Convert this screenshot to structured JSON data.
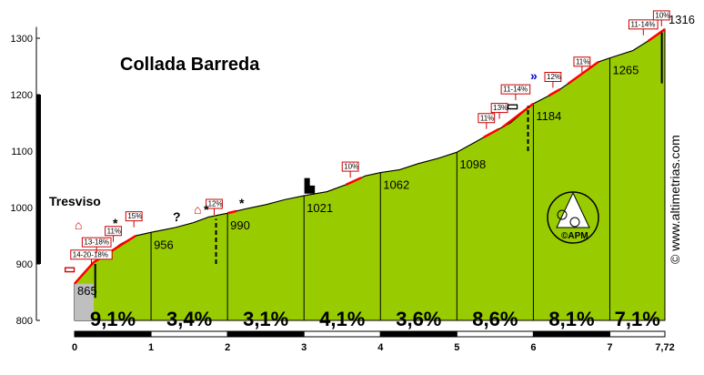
{
  "chart_data": {
    "type": "area",
    "title": "Collada Barreda",
    "start_label": "Tresviso",
    "watermark": "© www.altimetrias.com",
    "logo_text": "©APM",
    "xlim": [
      0,
      7.72
    ],
    "ylim": [
      800,
      1320
    ],
    "y_ticks": [
      800,
      900,
      1000,
      1100,
      1200,
      1300
    ],
    "x_ticks": [
      "0",
      "1",
      "2",
      "3",
      "4",
      "5",
      "6",
      "7",
      "7,72"
    ],
    "colors": {
      "fill": "#99cc00",
      "start_fill": "#bfbfbf",
      "steep": "#ff0000",
      "outline": "#000000"
    },
    "profile": [
      {
        "x": 0,
        "y": 865
      },
      {
        "x": 0.12,
        "y": 885
      },
      {
        "x": 0.25,
        "y": 903
      },
      {
        "x": 0.45,
        "y": 920
      },
      {
        "x": 0.6,
        "y": 935
      },
      {
        "x": 0.8,
        "y": 950
      },
      {
        "x": 1,
        "y": 956
      },
      {
        "x": 1.3,
        "y": 964
      },
      {
        "x": 1.55,
        "y": 973
      },
      {
        "x": 1.75,
        "y": 983
      },
      {
        "x": 2,
        "y": 990
      },
      {
        "x": 2.25,
        "y": 998
      },
      {
        "x": 2.5,
        "y": 1005
      },
      {
        "x": 2.75,
        "y": 1014
      },
      {
        "x": 3,
        "y": 1021
      },
      {
        "x": 3.3,
        "y": 1028
      },
      {
        "x": 3.6,
        "y": 1043
      },
      {
        "x": 3.8,
        "y": 1056
      },
      {
        "x": 4,
        "y": 1062
      },
      {
        "x": 4.25,
        "y": 1067
      },
      {
        "x": 4.5,
        "y": 1078
      },
      {
        "x": 4.75,
        "y": 1087
      },
      {
        "x": 5,
        "y": 1098
      },
      {
        "x": 5.2,
        "y": 1113
      },
      {
        "x": 5.45,
        "y": 1132
      },
      {
        "x": 5.7,
        "y": 1150
      },
      {
        "x": 6,
        "y": 1184
      },
      {
        "x": 6.3,
        "y": 1205
      },
      {
        "x": 6.6,
        "y": 1233
      },
      {
        "x": 6.85,
        "y": 1258
      },
      {
        "x": 7,
        "y": 1265
      },
      {
        "x": 7.3,
        "y": 1278
      },
      {
        "x": 7.5,
        "y": 1295
      },
      {
        "x": 7.72,
        "y": 1316
      }
    ],
    "km_labels": [
      {
        "x": 0,
        "value": "865"
      },
      {
        "x": 1,
        "value": "956"
      },
      {
        "x": 2,
        "value": "990"
      },
      {
        "x": 3,
        "value": "1021"
      },
      {
        "x": 4,
        "value": "1062"
      },
      {
        "x": 5,
        "value": "1098"
      },
      {
        "x": 6,
        "value": "1184"
      },
      {
        "x": 7,
        "value": "1265"
      },
      {
        "x": 7.72,
        "value": "1316"
      }
    ],
    "segments": [
      "9,1%",
      "3,4%",
      "3,1%",
      "4,1%",
      "3,6%",
      "8,6%",
      "8,1%",
      "7,1%"
    ],
    "steep_sections": [
      {
        "x0": 0,
        "x1": 0.25
      },
      {
        "x0": 0.25,
        "x1": 0.8
      },
      {
        "x0": 2,
        "x1": 2.12
      },
      {
        "x0": 3.55,
        "x1": 3.75
      },
      {
        "x0": 5.35,
        "x1": 5.55
      },
      {
        "x0": 5.6,
        "x1": 6
      },
      {
        "x0": 6.2,
        "x1": 6.35
      },
      {
        "x0": 6.45,
        "x1": 6.85
      },
      {
        "x0": 7.5,
        "x1": 7.72
      }
    ],
    "ramp_labels": [
      {
        "text": "14-20-18%",
        "x": -0.05,
        "y": 910
      },
      {
        "text": "13-18%",
        "x": 0.1,
        "y": 932
      },
      {
        "text": "11%",
        "x": 0.4,
        "y": 952
      },
      {
        "text": "15%",
        "x": 0.67,
        "y": 978
      },
      {
        "text": "12%",
        "x": 1.72,
        "y": 1000
      },
      {
        "text": "10%",
        "x": 3.5,
        "y": 1066
      },
      {
        "text": "11%",
        "x": 5.28,
        "y": 1152
      },
      {
        "text": "13%",
        "x": 5.45,
        "y": 1170
      },
      {
        "text": "11-14%",
        "x": 5.58,
        "y": 1203
      },
      {
        "text": "12%",
        "x": 6.15,
        "y": 1225
      },
      {
        "text": "11%",
        "x": 6.53,
        "y": 1252
      },
      {
        "text": "11-14%",
        "x": 7.25,
        "y": 1318
      },
      {
        "text": "10%",
        "x": 7.57,
        "y": 1334
      }
    ]
  }
}
